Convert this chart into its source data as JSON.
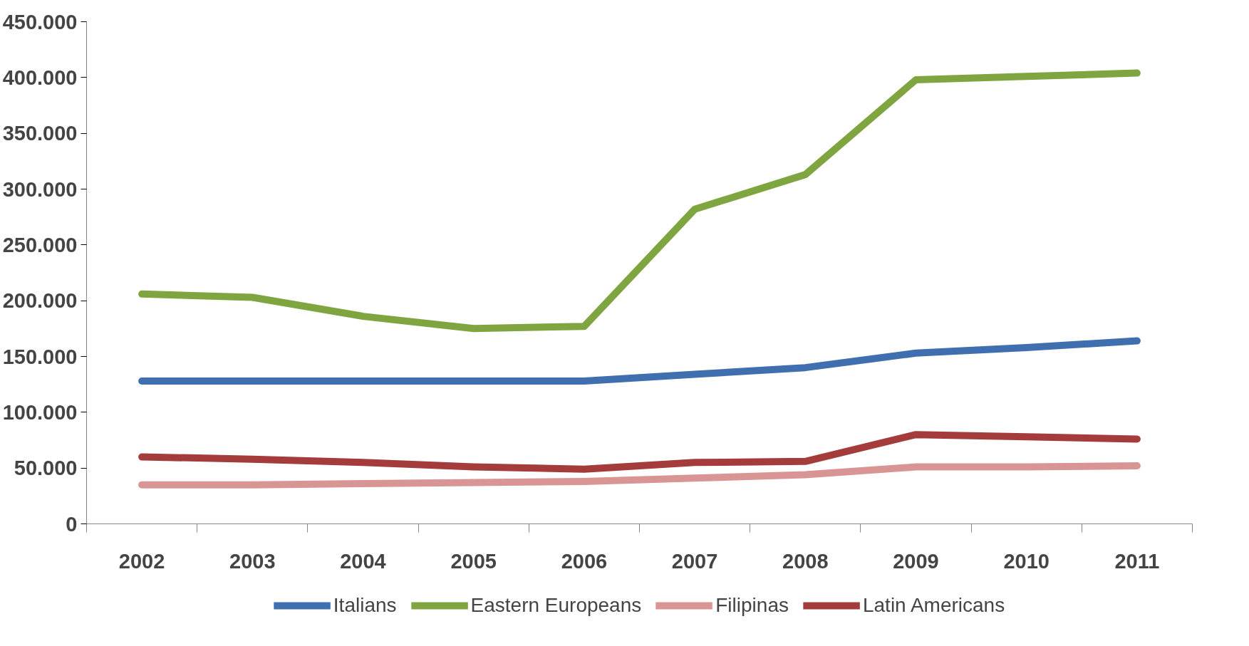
{
  "chart_data": {
    "type": "line",
    "categories": [
      "2002",
      "2003",
      "2004",
      "2005",
      "2006",
      "2007",
      "2008",
      "2009",
      "2010",
      "2011"
    ],
    "series": [
      {
        "name": "Italians",
        "color": "#3f6fae",
        "values": [
          128000,
          128000,
          128000,
          128000,
          128000,
          134000,
          140000,
          153000,
          158000,
          164000
        ]
      },
      {
        "name": "Eastern Europeans",
        "color": "#7fa541",
        "values": [
          206000,
          203000,
          186000,
          175000,
          177000,
          282000,
          313000,
          398000,
          401000,
          404000
        ]
      },
      {
        "name": "Filipinas",
        "color": "#d99594",
        "values": [
          35000,
          35000,
          36000,
          37000,
          38000,
          41000,
          44000,
          51000,
          51000,
          52000
        ]
      },
      {
        "name": "Latin Americans",
        "color": "#a33c3a",
        "values": [
          60000,
          58000,
          55000,
          51000,
          49000,
          55000,
          56000,
          80000,
          78000,
          76000
        ]
      }
    ],
    "ylim": [
      0,
      450000
    ],
    "yticks": [
      {
        "value": 0,
        "label": "0"
      },
      {
        "value": 50000,
        "label": "50.000"
      },
      {
        "value": 100000,
        "label": "100.000"
      },
      {
        "value": 150000,
        "label": "150.000"
      },
      {
        "value": 200000,
        "label": "200.000"
      },
      {
        "value": 250000,
        "label": "250.000"
      },
      {
        "value": 300000,
        "label": "300.000"
      },
      {
        "value": 350000,
        "label": "350.000"
      },
      {
        "value": 400000,
        "label": "400.000"
      },
      {
        "value": 450000,
        "label": "450.000"
      }
    ],
    "grid": false,
    "legend": "bottom",
    "marker": "none",
    "line_style": "solid"
  }
}
